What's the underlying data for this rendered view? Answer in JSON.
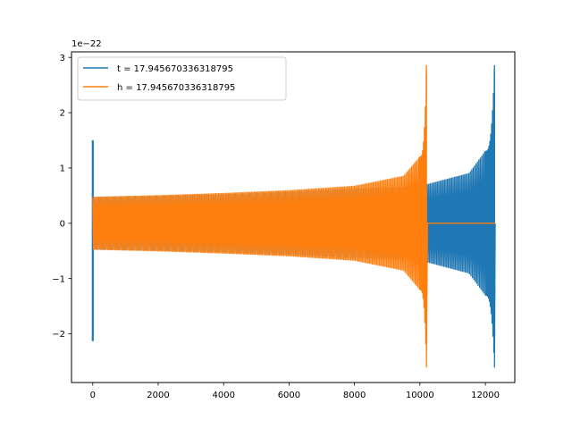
{
  "chart_data": {
    "type": "line",
    "title": "",
    "xlabel": "",
    "ylabel": "",
    "y_offset_label": "1e−22",
    "xlim": [
      -650,
      12900
    ],
    "ylim": [
      -2.88,
      3.1
    ],
    "x_ticks": [
      0,
      2000,
      4000,
      6000,
      8000,
      10000,
      12000
    ],
    "x_tick_labels": [
      "0",
      "2000",
      "4000",
      "6000",
      "8000",
      "10000",
      "12000"
    ],
    "y_ticks": [
      -2,
      -1,
      0,
      1,
      2,
      3
    ],
    "y_tick_labels": [
      "−2",
      "−1",
      "0",
      "1",
      "2",
      "3"
    ],
    "grid": false,
    "legend_position": "upper left",
    "series": [
      {
        "name": "t = 17.945670336318795",
        "color": "#1f77b4",
        "style": "oscillating chirp waveform",
        "spike": {
          "x": 0,
          "max": 1.5,
          "min": -2.13
        },
        "amplitude_envelope": [
          {
            "x": 0,
            "amp": 0.47
          },
          {
            "x": 2000,
            "amp": 0.49
          },
          {
            "x": 4000,
            "amp": 0.52
          },
          {
            "x": 6000,
            "amp": 0.57
          },
          {
            "x": 8000,
            "amp": 0.62
          },
          {
            "x": 10000,
            "amp": 0.67
          },
          {
            "x": 10230,
            "amp": 0.7
          },
          {
            "x": 11500,
            "amp": 0.9
          },
          {
            "x": 12000,
            "amp": 1.3
          },
          {
            "x": 12280,
            "max": 2.85,
            "min": -2.6
          }
        ],
        "end_x": 12300
      },
      {
        "name": "h = 17.945670336318795",
        "color": "#ff7f0e",
        "style": "oscillating chirp waveform",
        "amplitude_envelope": [
          {
            "x": 0,
            "amp": 0.47
          },
          {
            "x": 2000,
            "amp": 0.5
          },
          {
            "x": 4000,
            "amp": 0.54
          },
          {
            "x": 6000,
            "amp": 0.59
          },
          {
            "x": 8000,
            "amp": 0.67
          },
          {
            "x": 9500,
            "amp": 0.85
          },
          {
            "x": 10000,
            "amp": 1.2
          },
          {
            "x": 10200,
            "max": 2.85,
            "min": -2.6
          }
        ],
        "flat_after": {
          "x_start": 10230,
          "x_end": 12300,
          "value": 0
        }
      }
    ]
  }
}
